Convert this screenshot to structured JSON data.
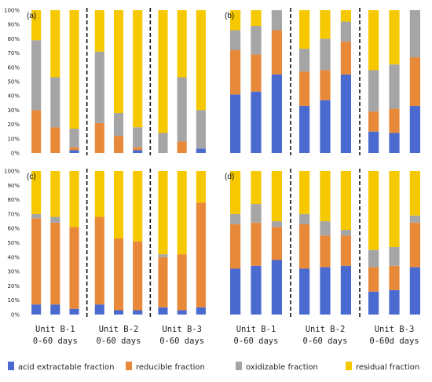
{
  "chart_data": {
    "type": "bar",
    "stacked": true,
    "ylim": [
      0,
      100
    ],
    "y_ticks": [
      "0%",
      "10%",
      "20%",
      "30%",
      "40%",
      "50%",
      "60%",
      "70%",
      "80%",
      "90%",
      "100%"
    ],
    "groups": [
      {
        "line1": "Unit B-1",
        "line2": "0-60 days"
      },
      {
        "line1": "Unit B-2",
        "line2": "0-60 days"
      },
      {
        "line1": "Unit B-3",
        "line2": "0-60 days"
      },
      {
        "line1": "Unit B-1",
        "line2": "0-60 days"
      },
      {
        "line1": "Unit B-2",
        "line2": "0-60 days"
      },
      {
        "line1": "Unit B-3",
        "line2": "0-60d days"
      }
    ],
    "series": [
      {
        "name": "acid extractable fraction",
        "color": "#4a6ad0"
      },
      {
        "name": "reducible fraction",
        "color": "#e8893a"
      },
      {
        "name": "oxidizable fraction",
        "color": "#a5a5a5"
      },
      {
        "name": "residual fraction",
        "color": "#f5c800"
      }
    ],
    "panels": [
      {
        "label": "(a)",
        "bars": [
          [
            0,
            30,
            49,
            21
          ],
          [
            0,
            18,
            35,
            47
          ],
          [
            2,
            2,
            13,
            83
          ],
          [
            0,
            21,
            50,
            29
          ],
          [
            0,
            12,
            16,
            72
          ],
          [
            2,
            2,
            14,
            82
          ],
          [
            0,
            0,
            14,
            86
          ],
          [
            0,
            8,
            45,
            47
          ],
          [
            3,
            0,
            27,
            70
          ]
        ]
      },
      {
        "label": "(b)",
        "bars": [
          [
            41,
            31,
            14,
            14
          ],
          [
            43,
            26,
            20,
            11
          ],
          [
            55,
            31,
            14,
            0
          ],
          [
            33,
            24,
            16,
            27
          ],
          [
            37,
            21,
            22,
            20
          ],
          [
            55,
            23,
            14,
            8
          ],
          [
            15,
            14,
            29,
            42
          ],
          [
            14,
            17,
            31,
            38
          ],
          [
            33,
            34,
            33,
            0
          ]
        ]
      },
      {
        "label": "(c)",
        "bars": [
          [
            7,
            60,
            3,
            30
          ],
          [
            7,
            57,
            4,
            32
          ],
          [
            4,
            57,
            0,
            39
          ],
          [
            7,
            61,
            0,
            32
          ],
          [
            3,
            50,
            0,
            47
          ],
          [
            3,
            48,
            0,
            49
          ],
          [
            5,
            35,
            2,
            58
          ],
          [
            3,
            39,
            0,
            58
          ],
          [
            5,
            73,
            0,
            22
          ]
        ]
      },
      {
        "label": "(d)",
        "bars": [
          [
            32,
            31,
            7,
            30
          ],
          [
            34,
            30,
            13,
            23
          ],
          [
            38,
            23,
            4,
            35
          ],
          [
            32,
            31,
            7,
            30
          ],
          [
            33,
            22,
            10,
            35
          ],
          [
            34,
            21,
            4,
            41
          ],
          [
            16,
            17,
            12,
            55
          ],
          [
            17,
            17,
            13,
            53
          ],
          [
            33,
            31,
            5,
            31
          ]
        ]
      }
    ]
  }
}
